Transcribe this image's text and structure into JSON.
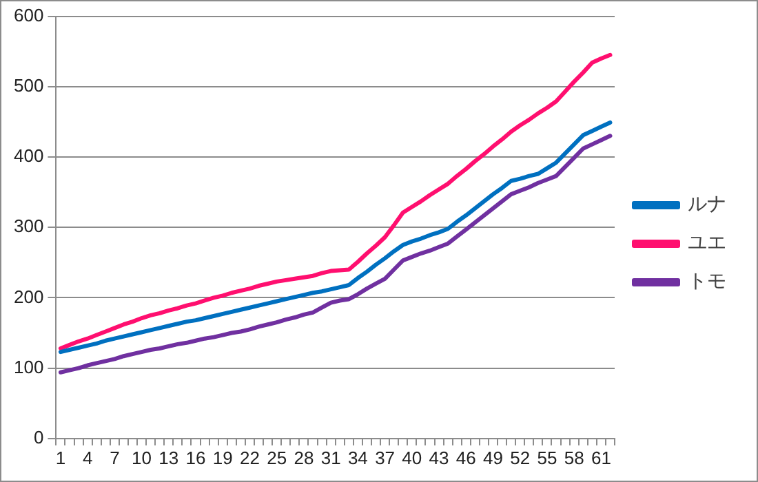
{
  "chart_data": {
    "type": "line",
    "categories": [
      "1",
      null,
      null,
      "4",
      null,
      null,
      "7",
      null,
      null,
      "10",
      null,
      null,
      "13",
      null,
      null,
      "16",
      null,
      null,
      "19",
      null,
      null,
      "22",
      null,
      null,
      "25",
      null,
      null,
      "28",
      null,
      null,
      "31",
      null,
      null,
      "34",
      null,
      null,
      "37",
      null,
      null,
      "40",
      null,
      null,
      "43",
      null,
      null,
      "46",
      null,
      null,
      "49",
      null,
      null,
      "52",
      null,
      null,
      "55",
      null,
      null,
      "58",
      null,
      null,
      "61",
      null
    ],
    "series": [
      {
        "name": "ルナ",
        "color": "#0070c0",
        "values": [
          123,
          126,
          129,
          132,
          135,
          139,
          142,
          145,
          148,
          151,
          154,
          157,
          160,
          163,
          166,
          168,
          171,
          174,
          177,
          180,
          183,
          186,
          189,
          192,
          195,
          198,
          201,
          204,
          207,
          209,
          212,
          215,
          218,
          228,
          237,
          247,
          256,
          266,
          275,
          280,
          284,
          289,
          293,
          298,
          308,
          317,
          327,
          337,
          347,
          356,
          366,
          369,
          373,
          376,
          384,
          392,
          405,
          418,
          431,
          437,
          443,
          449
        ]
      },
      {
        "name": "ユエ",
        "color": "#ff0f6f",
        "values": [
          128,
          133,
          138,
          142,
          147,
          152,
          157,
          162,
          166,
          171,
          175,
          178,
          182,
          185,
          189,
          192,
          196,
          200,
          203,
          207,
          210,
          213,
          217,
          220,
          223,
          225,
          227,
          229,
          231,
          235,
          238,
          239,
          240,
          251,
          263,
          274,
          286,
          303,
          321,
          329,
          337,
          346,
          354,
          362,
          373,
          383,
          394,
          404,
          415,
          425,
          436,
          445,
          453,
          462,
          470,
          479,
          493,
          507,
          520,
          534,
          540,
          545
        ]
      },
      {
        "name": "トモ",
        "color": "#7030a0",
        "values": [
          94,
          97,
          100,
          104,
          107,
          110,
          113,
          117,
          120,
          123,
          126,
          128,
          131,
          134,
          136,
          139,
          142,
          144,
          147,
          150,
          152,
          155,
          159,
          162,
          165,
          169,
          172,
          176,
          179,
          186,
          193,
          196,
          198,
          205,
          213,
          220,
          227,
          240,
          253,
          258,
          263,
          267,
          272,
          277,
          287,
          297,
          307,
          317,
          327,
          337,
          347,
          352,
          357,
          363,
          368,
          373,
          386,
          399,
          412,
          418,
          424,
          430
        ]
      }
    ],
    "ylim": [
      0,
      600
    ],
    "yticks": [
      0,
      100,
      200,
      300,
      400,
      500,
      600
    ],
    "grid": "y",
    "legend": "right",
    "marker": "none",
    "line_style": "solid"
  }
}
